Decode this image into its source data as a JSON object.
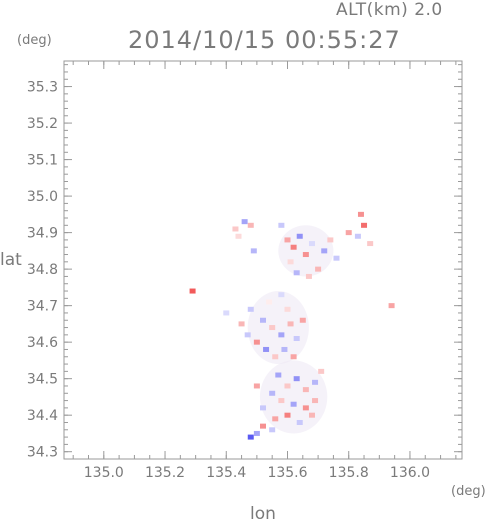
{
  "header": {
    "altitude_label": "ALT(km) 2.0",
    "timestamp": "2014/10/15 00:55:27"
  },
  "axes": {
    "y_unit": "(deg)",
    "x_unit": "(deg)",
    "y_label": "lat",
    "x_label": "lon"
  },
  "colors": {
    "axis": "#9a9a9a",
    "tick_text": "#7a7a7a",
    "positive": "#f04848",
    "negative": "#4848f0",
    "weak": "#ece8f4"
  },
  "chart_data": {
    "type": "heatmap",
    "title": "2014/10/15 00:55:27",
    "subtitle": "ALT(km) 2.0",
    "xlabel": "lon",
    "ylabel": "lat",
    "x_unit": "(deg)",
    "y_unit": "(deg)",
    "xlim": [
      134.87,
      136.17
    ],
    "ylim": [
      34.28,
      35.37
    ],
    "x_ticks": [
      "135.0",
      "135.2",
      "135.4",
      "135.6",
      "135.8",
      "136.0"
    ],
    "y_ticks": [
      "34.3",
      "34.4",
      "34.5",
      "34.6",
      "34.7",
      "34.8",
      "34.9",
      "35.0",
      "35.1",
      "35.2",
      "35.3"
    ],
    "grid": false,
    "colorscale": "blue-white-red diverging",
    "cells": [
      {
        "lon": 135.43,
        "lat": 34.91,
        "value": 0.3
      },
      {
        "lon": 135.46,
        "lat": 34.93,
        "value": -0.5
      },
      {
        "lon": 135.48,
        "lat": 34.92,
        "value": 0.4
      },
      {
        "lon": 135.44,
        "lat": 34.89,
        "value": 0.2
      },
      {
        "lon": 135.49,
        "lat": 34.85,
        "value": -0.4
      },
      {
        "lon": 135.58,
        "lat": 34.92,
        "value": -0.3
      },
      {
        "lon": 135.6,
        "lat": 34.88,
        "value": 0.5
      },
      {
        "lon": 135.62,
        "lat": 34.86,
        "value": 0.7
      },
      {
        "lon": 135.64,
        "lat": 34.89,
        "value": -0.6
      },
      {
        "lon": 135.66,
        "lat": 34.84,
        "value": 0.6
      },
      {
        "lon": 135.68,
        "lat": 34.87,
        "value": -0.2
      },
      {
        "lon": 135.7,
        "lat": 34.8,
        "value": 0.4
      },
      {
        "lon": 135.72,
        "lat": 34.85,
        "value": -0.5
      },
      {
        "lon": 135.74,
        "lat": 34.88,
        "value": 0.3
      },
      {
        "lon": 135.76,
        "lat": 34.83,
        "value": -0.3
      },
      {
        "lon": 135.63,
        "lat": 34.79,
        "value": -0.4
      },
      {
        "lon": 135.61,
        "lat": 34.82,
        "value": 0.2
      },
      {
        "lon": 135.67,
        "lat": 34.78,
        "value": 0.3
      },
      {
        "lon": 135.84,
        "lat": 34.95,
        "value": 0.6
      },
      {
        "lon": 135.85,
        "lat": 34.92,
        "value": 0.8
      },
      {
        "lon": 135.83,
        "lat": 34.89,
        "value": -0.3
      },
      {
        "lon": 135.8,
        "lat": 34.9,
        "value": 0.5
      },
      {
        "lon": 135.87,
        "lat": 34.87,
        "value": 0.3
      },
      {
        "lon": 135.29,
        "lat": 34.74,
        "value": 0.9
      },
      {
        "lon": 135.94,
        "lat": 34.7,
        "value": 0.5
      },
      {
        "lon": 135.48,
        "lat": 34.69,
        "value": -0.3
      },
      {
        "lon": 135.54,
        "lat": 34.71,
        "value": 0.1
      },
      {
        "lon": 135.58,
        "lat": 34.73,
        "value": -0.2
      },
      {
        "lon": 135.6,
        "lat": 34.69,
        "value": 0.2
      },
      {
        "lon": 135.52,
        "lat": 34.66,
        "value": -0.4
      },
      {
        "lon": 135.55,
        "lat": 34.64,
        "value": 0.3
      },
      {
        "lon": 135.58,
        "lat": 34.62,
        "value": -0.5
      },
      {
        "lon": 135.61,
        "lat": 34.65,
        "value": 0.4
      },
      {
        "lon": 135.63,
        "lat": 34.61,
        "value": -0.3
      },
      {
        "lon": 135.65,
        "lat": 34.66,
        "value": 0.5
      },
      {
        "lon": 135.5,
        "lat": 34.6,
        "value": 0.6
      },
      {
        "lon": 135.53,
        "lat": 34.58,
        "value": -0.6
      },
      {
        "lon": 135.56,
        "lat": 34.56,
        "value": 0.3
      },
      {
        "lon": 135.59,
        "lat": 34.58,
        "value": -0.4
      },
      {
        "lon": 135.62,
        "lat": 34.56,
        "value": 0.5
      },
      {
        "lon": 135.45,
        "lat": 34.65,
        "value": 0.4
      },
      {
        "lon": 135.47,
        "lat": 34.62,
        "value": -0.3
      },
      {
        "lon": 135.4,
        "lat": 34.68,
        "value": -0.2
      },
      {
        "lon": 135.57,
        "lat": 34.51,
        "value": -0.5
      },
      {
        "lon": 135.6,
        "lat": 34.48,
        "value": 0.3
      },
      {
        "lon": 135.63,
        "lat": 34.5,
        "value": -0.6
      },
      {
        "lon": 135.66,
        "lat": 34.47,
        "value": 0.4
      },
      {
        "lon": 135.69,
        "lat": 34.49,
        "value": -0.4
      },
      {
        "lon": 135.71,
        "lat": 34.52,
        "value": 0.3
      },
      {
        "lon": 135.55,
        "lat": 34.46,
        "value": -0.4
      },
      {
        "lon": 135.58,
        "lat": 34.44,
        "value": 0.3
      },
      {
        "lon": 135.62,
        "lat": 34.43,
        "value": -0.5
      },
      {
        "lon": 135.66,
        "lat": 34.42,
        "value": 0.6
      },
      {
        "lon": 135.69,
        "lat": 34.44,
        "value": 0.4
      },
      {
        "lon": 135.5,
        "lat": 34.48,
        "value": 0.5
      },
      {
        "lon": 135.52,
        "lat": 34.42,
        "value": -0.3
      },
      {
        "lon": 135.56,
        "lat": 34.39,
        "value": 0.5
      },
      {
        "lon": 135.6,
        "lat": 34.4,
        "value": 0.7
      },
      {
        "lon": 135.64,
        "lat": 34.38,
        "value": -0.3
      },
      {
        "lon": 135.68,
        "lat": 34.4,
        "value": 0.4
      },
      {
        "lon": 135.52,
        "lat": 34.37,
        "value": 0.6
      },
      {
        "lon": 135.55,
        "lat": 34.36,
        "value": -0.3
      },
      {
        "lon": 135.48,
        "lat": 34.34,
        "value": -0.9
      },
      {
        "lon": 135.5,
        "lat": 34.35,
        "value": -0.5
      }
    ]
  }
}
